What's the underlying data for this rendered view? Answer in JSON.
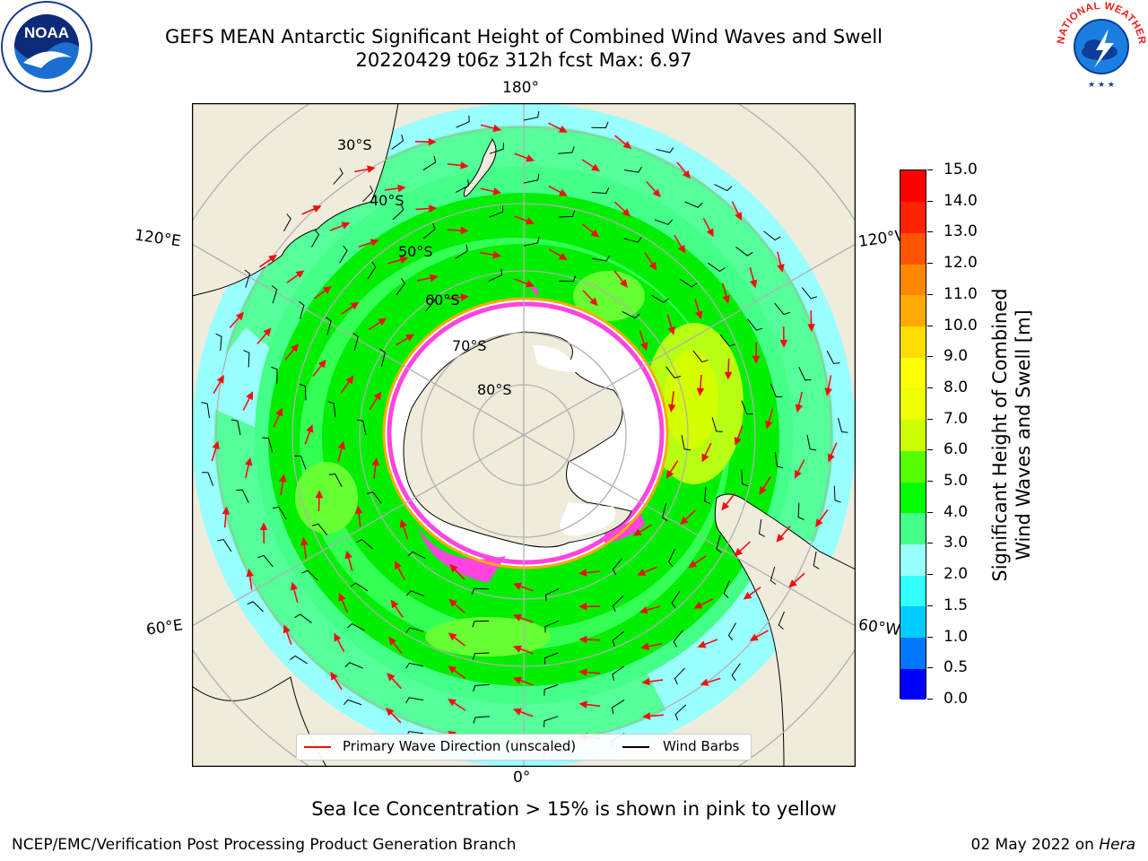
{
  "title": {
    "line1": "GEFS MEAN Antarctic Significant Height of Combined Wind Waves and Swell",
    "line2": "20220429 t06z 312h fcst   Max: 6.97"
  },
  "map": {
    "projection": "south-polar-stereographic",
    "latitude_labels": [
      "30°S",
      "40°S",
      "50°S",
      "60°S",
      "70°S",
      "80°S"
    ],
    "longitude_labels": {
      "top": "180°",
      "upper_left": "120°E",
      "upper_right": "120°W",
      "lower_left": "60°E",
      "lower_right": "60°W",
      "bottom": "0°"
    },
    "colors": {
      "land": "#efecdc",
      "sea_ice": "#ff44e0",
      "ice_edge": "#ffaa00",
      "coastline": "#000000",
      "wave_arrow": "#ee1111",
      "wind_barb": "#000000",
      "grid": "#b0b0b0"
    }
  },
  "legend": {
    "wave_direction": "Primary Wave Direction (unscaled)",
    "wind_barbs": "Wind Barbs"
  },
  "colorbar": {
    "label_line1": "Significant Height of Combined",
    "label_line2": "Wind Waves and Swell [m]",
    "ticks": [
      "0.0",
      "0.5",
      "1.0",
      "1.5",
      "2.0",
      "3.0",
      "4.0",
      "5.0",
      "6.0",
      "7.0",
      "8.0",
      "9.0",
      "10.0",
      "11.0",
      "12.0",
      "13.0",
      "14.0",
      "15.0"
    ],
    "colors": [
      "#0000ff",
      "#0077ff",
      "#00ccff",
      "#33ffff",
      "#99ffff",
      "#44ff88",
      "#00ff00",
      "#55ff00",
      "#ccff00",
      "#eeff00",
      "#ffff00",
      "#ffdd00",
      "#ffaa00",
      "#ff8800",
      "#ff5500",
      "#ff2200",
      "#ff0000"
    ]
  },
  "chart_data": {
    "type": "heatmap",
    "title": "GEFS MEAN Antarctic Significant Height of Combined Wind Waves and Swell",
    "subtitle": "20220429 t06z 312h fcst   Max: 6.97",
    "variable": "Significant Height of Combined Wind Waves and Swell [m]",
    "max": 6.97,
    "color_scale_bounds": [
      0.0,
      0.5,
      1.0,
      1.5,
      2.0,
      3.0,
      4.0,
      5.0,
      6.0,
      7.0,
      8.0,
      9.0,
      10.0,
      11.0,
      12.0,
      13.0,
      14.0,
      15.0
    ],
    "overlays": [
      "Primary Wave Direction (unscaled)",
      "Wind Barbs",
      "Sea Ice Concentration > 15%"
    ]
  },
  "notes": {
    "sea_ice": "Sea Ice Concentration > 15% is shown in pink to yellow"
  },
  "footer": {
    "credit": "NCEP/EMC/Verification Post Processing Product Generation Branch",
    "date": "02 May 2022 on ",
    "machine": "Hera"
  },
  "logos": {
    "left": "NOAA",
    "right_text": "NATIONAL WEATHER SERVICE"
  }
}
